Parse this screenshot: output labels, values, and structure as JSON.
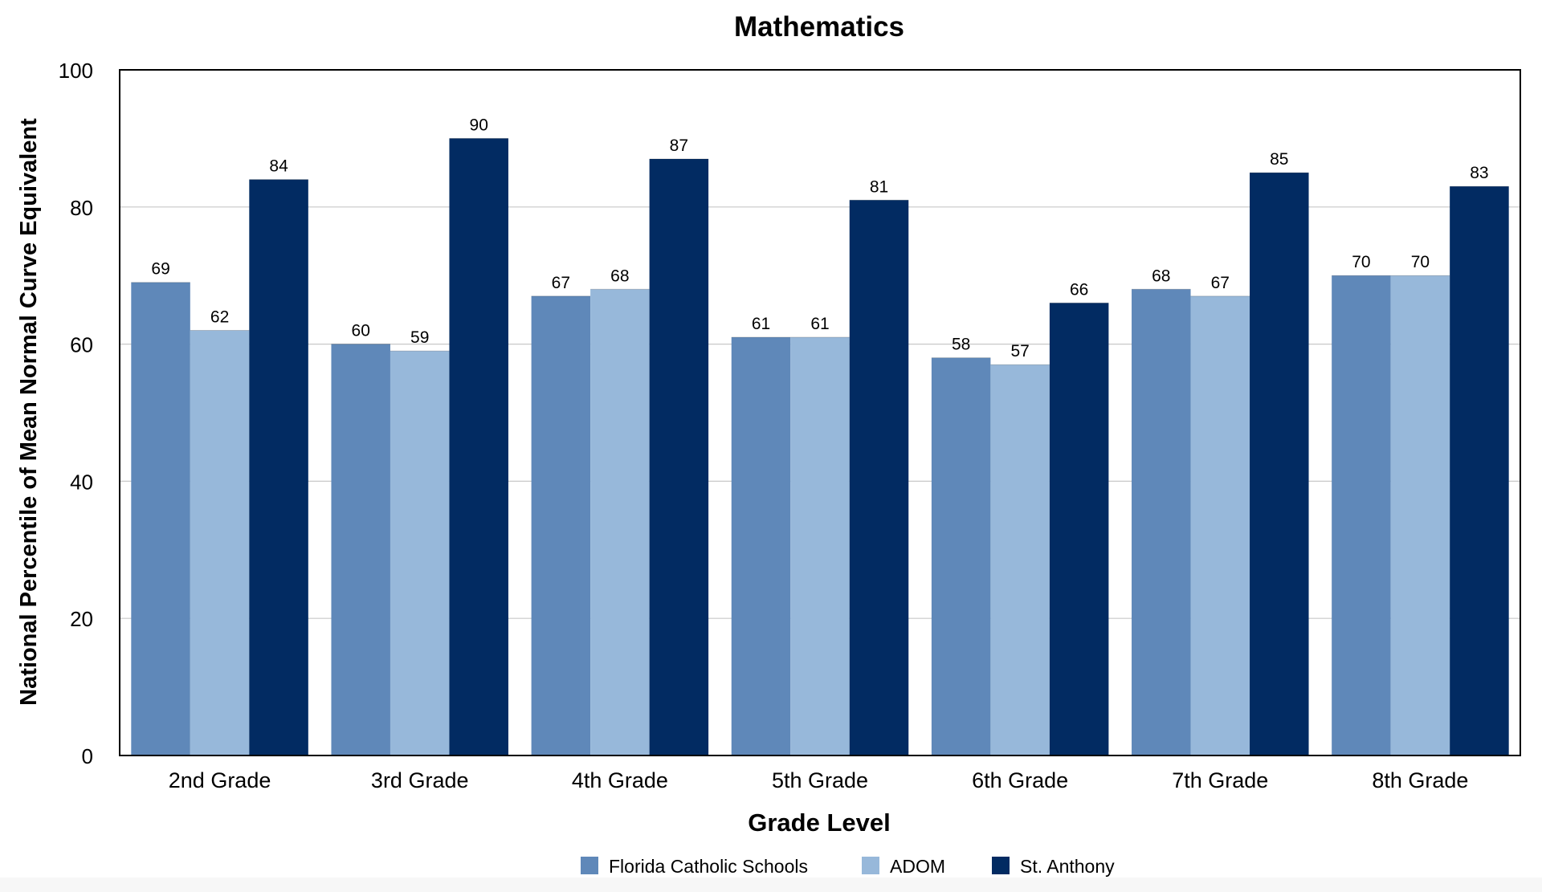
{
  "chart_data": {
    "type": "bar",
    "title": "Mathematics",
    "xlabel": "Grade Level",
    "ylabel": "National Percentile of Mean Normal Curve Equivalent",
    "categories": [
      "2nd Grade",
      "3rd Grade",
      "4th Grade",
      "5th Grade",
      "6th Grade",
      "7th Grade",
      "8th Grade"
    ],
    "series": [
      {
        "name": "Florida Catholic Schools",
        "color": "#5f88b9",
        "values": [
          69,
          60,
          67,
          61,
          58,
          68,
          70
        ]
      },
      {
        "name": "ADOM",
        "color": "#97b8da",
        "values": [
          62,
          59,
          68,
          61,
          57,
          67,
          70
        ]
      },
      {
        "name": "St. Anthony",
        "color": "#022b62",
        "values": [
          84,
          90,
          87,
          81,
          66,
          85,
          83
        ]
      }
    ],
    "ylim": [
      0,
      100
    ],
    "yticks": [
      0,
      20,
      40,
      60,
      80,
      100
    ],
    "grid": true,
    "data_labels": true,
    "legend_position": "bottom-center"
  }
}
